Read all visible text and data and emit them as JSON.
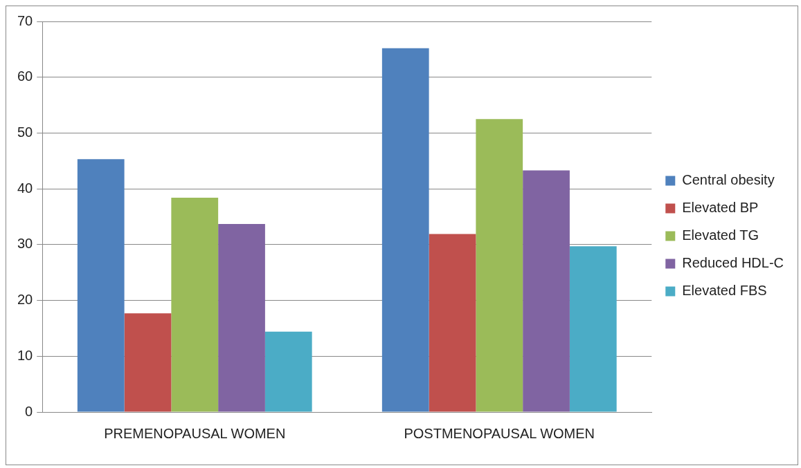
{
  "chart_data": {
    "type": "bar",
    "categories": [
      "PREMENOPAUSAL WOMEN",
      "POSTMENOPAUSAL WOMEN"
    ],
    "series": [
      {
        "name": "Central obesity",
        "color": "#4f81bd",
        "values": [
          45.3,
          65.2
        ]
      },
      {
        "name": "Elevated BP",
        "color": "#c0504d",
        "values": [
          17.7,
          31.9
        ]
      },
      {
        "name": "Elevated TG",
        "color": "#9bbb59",
        "values": [
          38.4,
          52.5
        ]
      },
      {
        "name": "Reduced HDL-C",
        "color": "#8064a2",
        "values": [
          33.7,
          43.3
        ]
      },
      {
        "name": "Elevated FBS",
        "color": "#4bacc6",
        "values": [
          14.4,
          29.7
        ]
      }
    ],
    "ylim": [
      0,
      70
    ],
    "yticks": [
      0,
      10,
      20,
      30,
      40,
      50,
      60,
      70
    ],
    "grid": "y",
    "legend": "right"
  }
}
